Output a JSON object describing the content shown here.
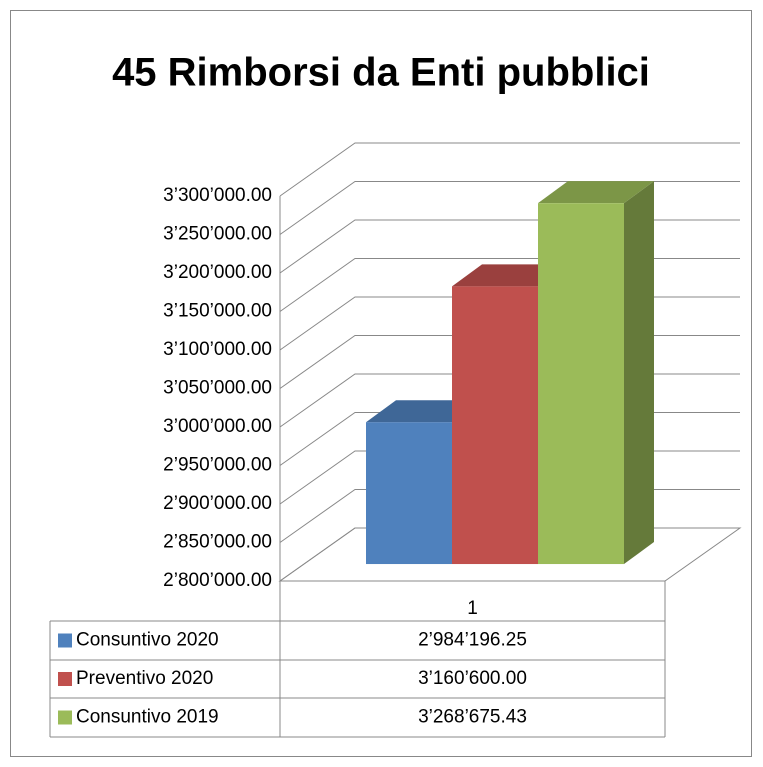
{
  "chart_data": {
    "type": "bar3d",
    "title": "45 Rimborsi da Enti pubblici",
    "categories": [
      "1"
    ],
    "series": [
      {
        "name": "Consuntivo 2020",
        "color": "#4f81bd",
        "values": [
          2984196.25
        ],
        "value_labels": [
          "2’984’196.25"
        ]
      },
      {
        "name": "Preventivo 2020",
        "color": "#c0504d",
        "values": [
          3160600.0
        ],
        "value_labels": [
          "3’160’600.00"
        ]
      },
      {
        "name": "Consuntivo 2019",
        "color": "#9bbb59",
        "values": [
          3268675.43
        ],
        "value_labels": [
          "3’268’675.43"
        ]
      }
    ],
    "ylim": [
      2800000,
      3300000
    ],
    "yticks": [
      {
        "value": 2800000,
        "label": "2’800’000.00"
      },
      {
        "value": 2850000,
        "label": "2’850’000.00"
      },
      {
        "value": 2900000,
        "label": "2’900’000.00"
      },
      {
        "value": 2950000,
        "label": "2’950’000.00"
      },
      {
        "value": 3000000,
        "label": "3’000’000.00"
      },
      {
        "value": 3050000,
        "label": "3’050’000.00"
      },
      {
        "value": 3100000,
        "label": "3’100’000.00"
      },
      {
        "value": 3150000,
        "label": "3’150’000.00"
      },
      {
        "value": 3200000,
        "label": "3’200’000.00"
      },
      {
        "value": 3250000,
        "label": "3’250’000.00"
      },
      {
        "value": 3300000,
        "label": "3’300’000.00"
      }
    ],
    "grid": true
  }
}
